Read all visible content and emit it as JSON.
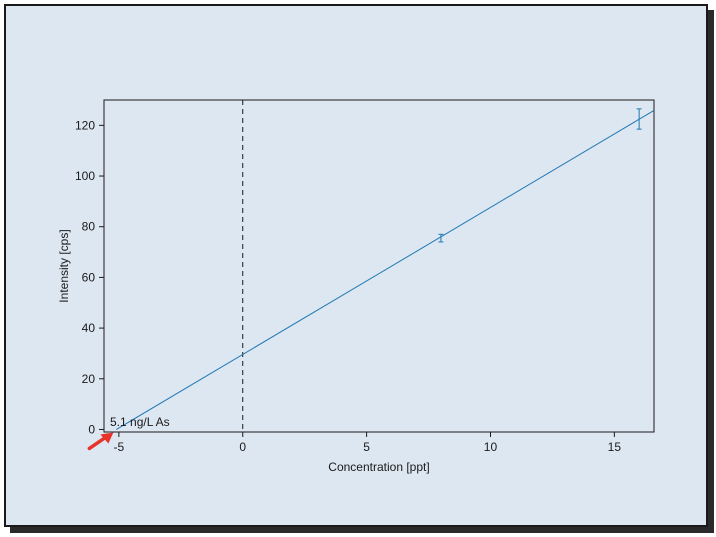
{
  "chart_data": {
    "type": "scatter",
    "title": "",
    "xlabel": "Concentration [ppt]",
    "ylabel": "Intensity [cps]",
    "xlim": [
      -5.6,
      16.6
    ],
    "ylim": [
      -1,
      130
    ],
    "x_ticks": [
      -5,
      0,
      5,
      10,
      15
    ],
    "y_ticks": [
      0,
      20,
      40,
      60,
      80,
      100,
      120
    ],
    "grid": false,
    "series": [
      {
        "points": [
          {
            "x": 0,
            "y": 29.5
          },
          {
            "x": 8,
            "y": 75.5,
            "err": 1.5
          },
          {
            "x": 16,
            "y": 122.5,
            "err": 4
          }
        ],
        "color": "#1f77b4"
      }
    ],
    "fit_line": {
      "slope": 5.8,
      "intercept": 29.6,
      "x_start": -5.1,
      "x_end": 16.6,
      "color": "#1f77b4"
    },
    "reference_line": {
      "x": 0,
      "style": "dashed"
    },
    "annotation": {
      "text": "5.1 ng/L As",
      "x": -5.1,
      "y": 0,
      "arrow_color": "#e8332a"
    }
  }
}
